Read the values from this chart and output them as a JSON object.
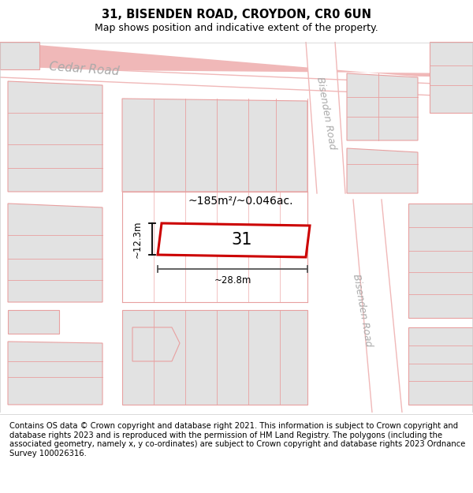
{
  "title_line1": "31, BISENDEN ROAD, CROYDON, CR0 6UN",
  "title_line2": "Map shows position and indicative extent of the property.",
  "footer_text": "Contains OS data © Crown copyright and database right 2021. This information is subject to Crown copyright and database rights 2023 and is reproduced with the permission of HM Land Registry. The polygons (including the associated geometry, namely x, y co-ordinates) are subject to Crown copyright and database rights 2023 Ordnance Survey 100026316.",
  "bg_color": "#f5f5f0",
  "map_bg": "#f0eeea",
  "road_color": "#f0b8b8",
  "block_color": "#e2e2e2",
  "block_edge_color": "#e8a0a0",
  "highlight_color": "#cc0000",
  "highlight_fill": "#ffffff",
  "road_label1": "Cedar Road",
  "road_label2a": "Bisenden Road",
  "road_label2b": "Bisenden Road",
  "property_label": "31",
  "area_label": "~185m²/~0.046ac.",
  "width_label": "~28.8m",
  "height_label": "~12.3m",
  "title_fontsize": 10.5,
  "subtitle_fontsize": 9,
  "footer_fontsize": 7.2
}
